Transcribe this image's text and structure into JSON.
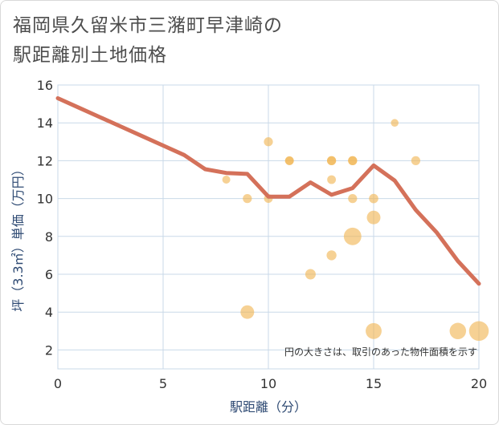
{
  "page": {
    "title_line1": "福岡県久留米市三潴町早津崎の",
    "title_line2": "駅距離別土地価格"
  },
  "chart_data": {
    "type": "scatter",
    "xlabel": "駅距離（分）",
    "ylabel": "坪（3.3㎡）単価（万円）",
    "xlim": [
      0,
      20
    ],
    "ylim": [
      1,
      16
    ],
    "xticks": [
      0,
      5,
      10,
      15,
      20
    ],
    "yticks": [
      2,
      4,
      6,
      8,
      10,
      12,
      14,
      16
    ],
    "grid": true,
    "note": "円の大きさは、取引のあった物件面積を示す",
    "colors": {
      "bubble": "#f0b452",
      "line": "#d4715a",
      "grid": "#c9d9e8",
      "text": "#333333"
    },
    "bubbles": [
      {
        "x": 8,
        "y": 11,
        "size": 1
      },
      {
        "x": 9,
        "y": 10,
        "size": 1.3
      },
      {
        "x": 9,
        "y": 4,
        "size": 3.2
      },
      {
        "x": 10,
        "y": 13,
        "size": 1.3
      },
      {
        "x": 10,
        "y": 10,
        "size": 1.2
      },
      {
        "x": 11,
        "y": 12,
        "size": 1.2
      },
      {
        "x": 11,
        "y": 12,
        "size": 1.2
      },
      {
        "x": 12,
        "y": 6,
        "size": 1.8
      },
      {
        "x": 13,
        "y": 12,
        "size": 1.3
      },
      {
        "x": 13,
        "y": 12,
        "size": 1.3
      },
      {
        "x": 13,
        "y": 11,
        "size": 1.2
      },
      {
        "x": 13,
        "y": 7,
        "size": 1.6
      },
      {
        "x": 14,
        "y": 12,
        "size": 1.3
      },
      {
        "x": 14,
        "y": 12,
        "size": 1.3
      },
      {
        "x": 14,
        "y": 10,
        "size": 1.3
      },
      {
        "x": 14,
        "y": 8,
        "size": 5.5
      },
      {
        "x": 15,
        "y": 10,
        "size": 1.4
      },
      {
        "x": 15,
        "y": 9,
        "size": 3.2
      },
      {
        "x": 15,
        "y": 3,
        "size": 4.5
      },
      {
        "x": 16,
        "y": 14,
        "size": 0.9
      },
      {
        "x": 17,
        "y": 12,
        "size": 1.3
      },
      {
        "x": 19,
        "y": 3,
        "size": 4.8
      },
      {
        "x": 20,
        "y": 3,
        "size": 7
      }
    ],
    "line": {
      "x": [
        0,
        1,
        2,
        3,
        4,
        5,
        6,
        7,
        8,
        9,
        10,
        11,
        12,
        13,
        14,
        15,
        16,
        17,
        18,
        19,
        20
      ],
      "y": [
        15.3,
        14.8,
        14.3,
        13.8,
        13.3,
        12.8,
        12.3,
        11.55,
        11.35,
        11.3,
        10.1,
        10.1,
        10.85,
        10.2,
        10.55,
        11.75,
        10.95,
        9.4,
        8.2,
        6.7,
        5.5
      ]
    }
  }
}
